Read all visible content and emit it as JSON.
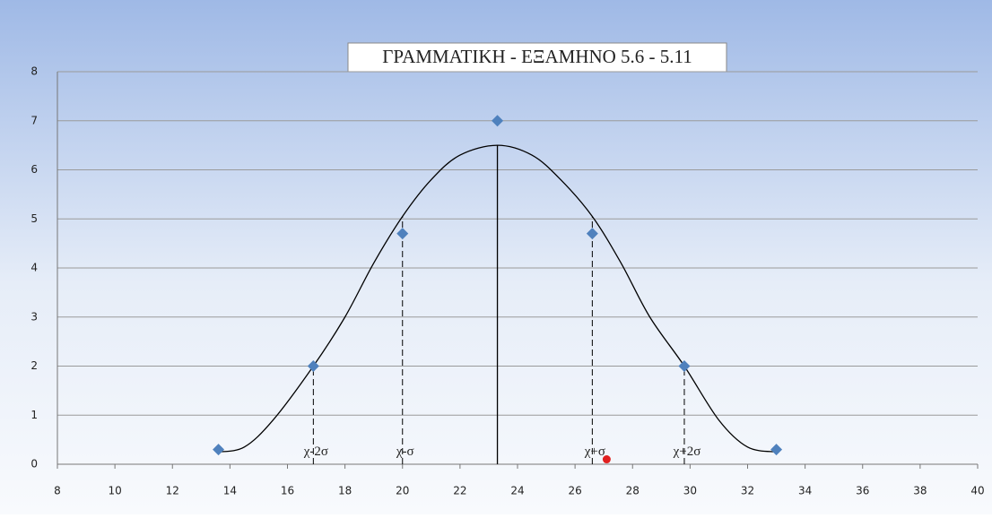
{
  "chart_data": {
    "type": "scatter",
    "title": "ΓΡΑΜΜΑΤΙΚΗ - ΕΞΑΜΗΝΟ 5.6 - 5.11",
    "xlim": [
      8,
      40
    ],
    "xticks": [
      8,
      10,
      12,
      14,
      16,
      18,
      20,
      22,
      24,
      26,
      28,
      30,
      32,
      34,
      36,
      38,
      40
    ],
    "ylim": [
      0,
      8
    ],
    "yticks": [
      0,
      1,
      2,
      3,
      4,
      5,
      6,
      7,
      8
    ],
    "grid": true,
    "points": {
      "color": "#4f81bd",
      "x": [
        13.6,
        16.9,
        20,
        23.3,
        26.6,
        29.8,
        33
      ],
      "values": [
        0.3,
        2,
        4.7,
        7,
        4.7,
        2,
        0.3
      ]
    },
    "curve": {
      "color": "#000000",
      "x": [
        13.6,
        14.5,
        15.5,
        16.9,
        18,
        19,
        20,
        21,
        22,
        23.3,
        24.5,
        25.5,
        26.6,
        27.6,
        28.6,
        29.8,
        31,
        32,
        33
      ],
      "values": [
        0.25,
        0.35,
        0.9,
        2.0,
        3.0,
        4.1,
        5.05,
        5.8,
        6.3,
        6.5,
        6.3,
        5.8,
        5.05,
        4.1,
        3.0,
        2.0,
        0.9,
        0.35,
        0.25
      ]
    },
    "mean": {
      "x": 23.3,
      "top": 6.5
    },
    "markers": [
      {
        "label": "χ-2σ",
        "x": 16.9,
        "top": 2.0
      },
      {
        "label": "χ-σ",
        "x": 20,
        "top": 5.05
      },
      {
        "label": "χ+σ",
        "x": 26.6,
        "top": 5.05
      },
      {
        "label": "χ+2σ",
        "x": 29.8,
        "top": 2.0
      }
    ],
    "highlight": {
      "color": "#e02020",
      "x": 27.1,
      "value": 0.1
    }
  }
}
